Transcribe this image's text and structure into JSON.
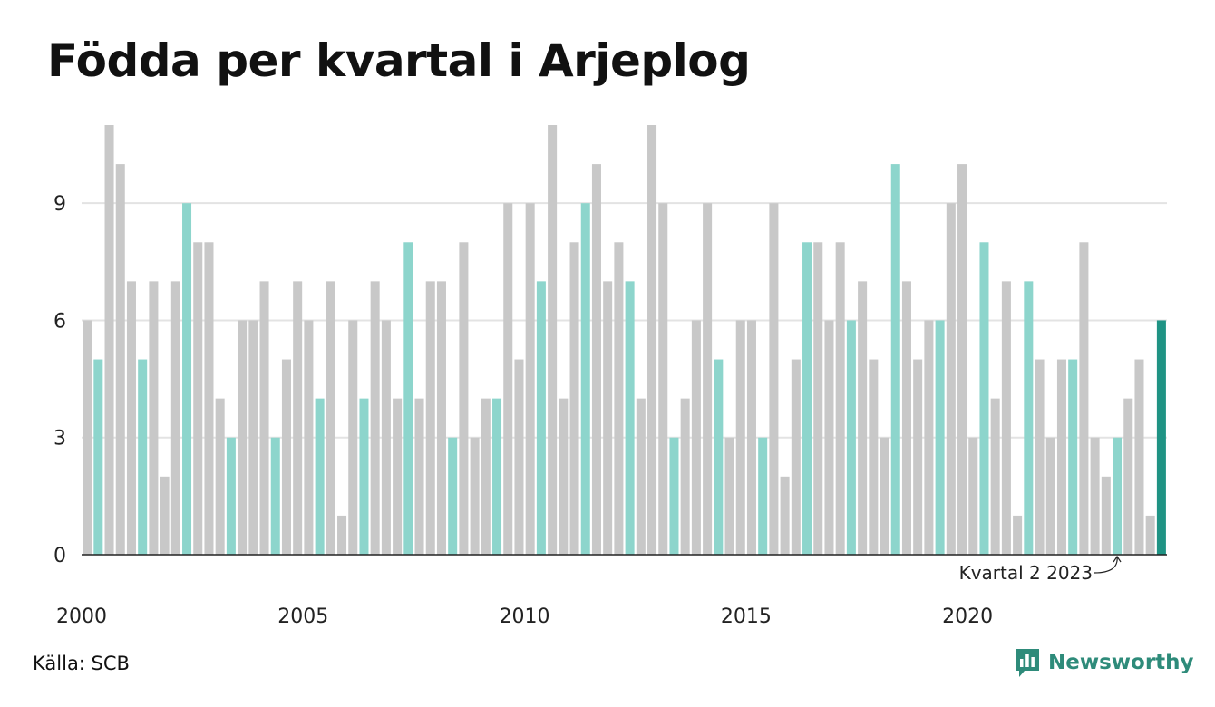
{
  "title": "Födda per kvartal i Arjeplog",
  "source": "Källa: SCB",
  "brand": {
    "name": "Newsworthy",
    "icon": "newsworthy-logo-icon"
  },
  "colors": {
    "grey": "#c8c8c8",
    "highlight_light": "#8dd5cc",
    "highlight_dark": "#1f9384",
    "grid": "#e3e3e3",
    "axis": "#222222",
    "brand": "#2e8b7a"
  },
  "chart_data": {
    "type": "bar",
    "title": "Födda per kvartal i Arjeplog",
    "xlabel": "",
    "ylabel": "",
    "ylim": [
      0,
      11
    ],
    "yticks": [
      0,
      3,
      6,
      9
    ],
    "grid": true,
    "xtick_labels": [
      "2000",
      "2005",
      "2010",
      "2015",
      "2020"
    ],
    "highlight_quarter": 2,
    "start_year": 2000,
    "categories": [
      "2000 Q1",
      "2000 Q2",
      "2000 Q3",
      "2000 Q4",
      "2001 Q1",
      "2001 Q2",
      "2001 Q3",
      "2001 Q4",
      "2002 Q1",
      "2002 Q2",
      "2002 Q3",
      "2002 Q4",
      "2003 Q1",
      "2003 Q2",
      "2003 Q3",
      "2003 Q4",
      "2004 Q1",
      "2004 Q2",
      "2004 Q3",
      "2004 Q4",
      "2005 Q1",
      "2005 Q2",
      "2005 Q3",
      "2005 Q4",
      "2006 Q1",
      "2006 Q2",
      "2006 Q3",
      "2006 Q4",
      "2007 Q1",
      "2007 Q2",
      "2007 Q3",
      "2007 Q4",
      "2008 Q1",
      "2008 Q2",
      "2008 Q3",
      "2008 Q4",
      "2009 Q1",
      "2009 Q2",
      "2009 Q3",
      "2009 Q4",
      "2010 Q1",
      "2010 Q2",
      "2010 Q3",
      "2010 Q4",
      "2011 Q1",
      "2011 Q2",
      "2011 Q3",
      "2011 Q4",
      "2012 Q1",
      "2012 Q2",
      "2012 Q3",
      "2012 Q4",
      "2013 Q1",
      "2013 Q2",
      "2013 Q3",
      "2013 Q4",
      "2014 Q1",
      "2014 Q2",
      "2014 Q3",
      "2014 Q4",
      "2015 Q1",
      "2015 Q2",
      "2015 Q3",
      "2015 Q4",
      "2016 Q1",
      "2016 Q2",
      "2016 Q3",
      "2016 Q4",
      "2017 Q1",
      "2017 Q2",
      "2017 Q3",
      "2017 Q4",
      "2018 Q1",
      "2018 Q2",
      "2018 Q3",
      "2018 Q4",
      "2019 Q1",
      "2019 Q2",
      "2019 Q3",
      "2019 Q4",
      "2020 Q1",
      "2020 Q2",
      "2020 Q3",
      "2020 Q4",
      "2021 Q1",
      "2021 Q2",
      "2021 Q3",
      "2021 Q4",
      "2022 Q1",
      "2022 Q2",
      "2022 Q3",
      "2022 Q4",
      "2023 Q1",
      "2023 Q2",
      "2023 Q3",
      "2023 Q4",
      "2024 Q1",
      "2024 Q2"
    ],
    "values": [
      6,
      5,
      11,
      10,
      7,
      5,
      7,
      2,
      7,
      9,
      8,
      8,
      4,
      3,
      6,
      6,
      7,
      3,
      5,
      7,
      6,
      4,
      7,
      1,
      6,
      4,
      7,
      6,
      4,
      8,
      4,
      7,
      7,
      3,
      8,
      3,
      4,
      4,
      9,
      5,
      9,
      7,
      11,
      4,
      8,
      9,
      10,
      7,
      8,
      7,
      4,
      11,
      9,
      3,
      4,
      6,
      9,
      5,
      3,
      6,
      6,
      3,
      9,
      2,
      5,
      8,
      8,
      6,
      8,
      6,
      7,
      5,
      3,
      10,
      7,
      5,
      6,
      6,
      9,
      10,
      3,
      8,
      4,
      7,
      1,
      7,
      5,
      3,
      5,
      5,
      8,
      3,
      2,
      3,
      4,
      5,
      1,
      6
    ],
    "annotation": {
      "text": "Kvartal 2 2023",
      "target": "2023 Q2"
    }
  }
}
